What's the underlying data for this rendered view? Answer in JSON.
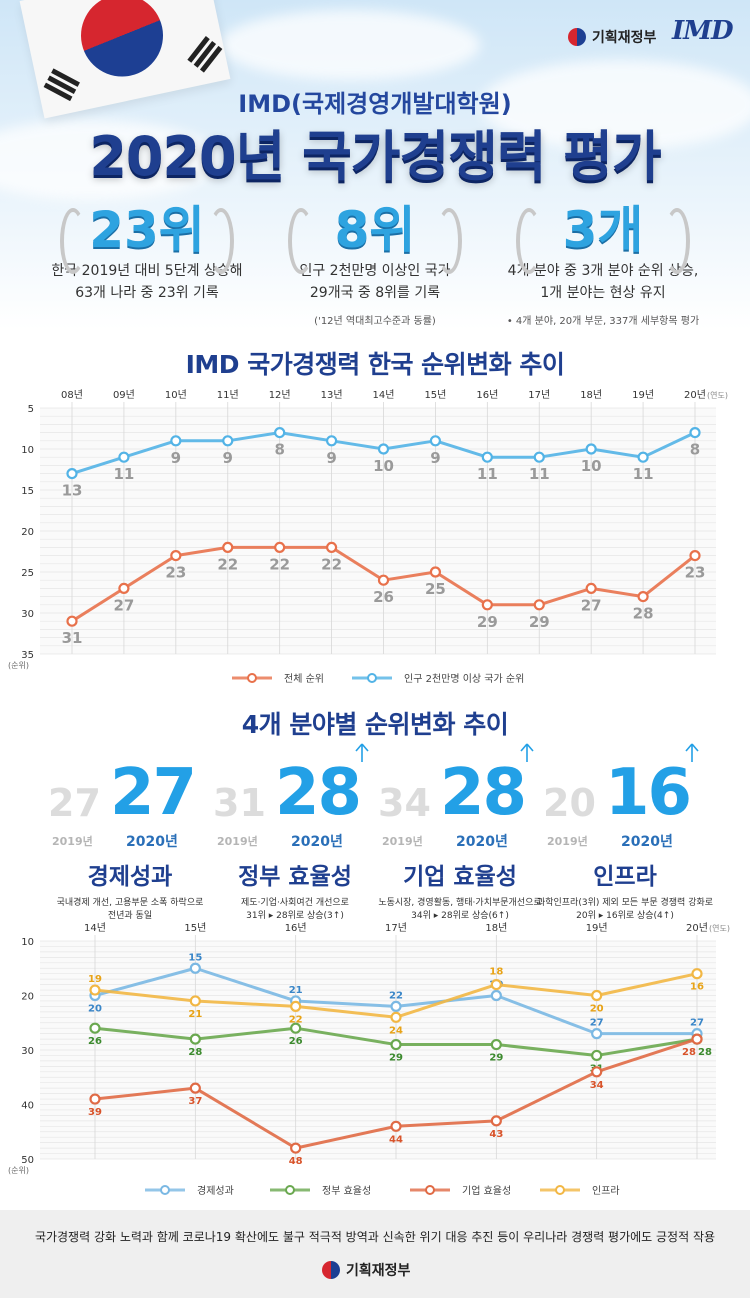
{
  "header": {
    "org": "기획재정부",
    "imd_logo": "IMD",
    "subtitle": "IMD(국제경영개발대학원)",
    "title": "2020년 국가경쟁력 평가"
  },
  "stats": [
    {
      "big": "23위",
      "line1": "한국 2019년 대비 5단계 상승해",
      "line2": "63개 나라 중 23위 기록",
      "note": ""
    },
    {
      "big": "8위",
      "line1": "인구 2천만명 이상인 국가",
      "line2": "29개국 중 8위를 기록",
      "note": "('12년 역대최고수준과 동률)"
    },
    {
      "big": "3개",
      "line1": "4개 분야 중 3개 분야 순위 상승,",
      "line2": "1개 분야는 현상 유지",
      "note": "• 4개 분야, 20개 부문, 337개 세부항목 평가"
    }
  ],
  "chart1_title": "IMD 국가경쟁력 한국 순위변화 추이",
  "chart2_title": "4개 분야별 순위변화 추이",
  "chart_data": [
    {
      "type": "line",
      "title": "IMD 국가경쟁력 한국 순위변화 추이",
      "x": [
        "08년",
        "09년",
        "10년",
        "11년",
        "12년",
        "13년",
        "14년",
        "15년",
        "16년",
        "17년",
        "18년",
        "19년",
        "20년"
      ],
      "x_unit": "(연도)",
      "y_unit": "(순위)",
      "ylim": [
        5,
        35
      ],
      "y_ticks": [
        5,
        10,
        15,
        20,
        25,
        30,
        35
      ],
      "y_inverted": true,
      "grid": true,
      "legend_position": "bottom",
      "series": [
        {
          "name": "전체 순위",
          "color": "#e8714b",
          "values": [
            31,
            27,
            23,
            22,
            22,
            22,
            26,
            25,
            29,
            29,
            27,
            28,
            23
          ]
        },
        {
          "name": "인구 2천만명 이상 국가 순위",
          "color": "#52b3e6",
          "values": [
            13,
            11,
            9,
            9,
            8,
            9,
            10,
            9,
            11,
            11,
            10,
            11,
            8
          ]
        }
      ]
    },
    {
      "type": "line",
      "title": "4개 분야별 순위변화 추이",
      "x": [
        "14년",
        "15년",
        "16년",
        "17년",
        "18년",
        "19년",
        "20년"
      ],
      "x_unit": "(연도)",
      "y_unit": "(순위)",
      "ylim": [
        10,
        50
      ],
      "y_ticks": [
        10,
        20,
        30,
        40,
        50
      ],
      "y_inverted": true,
      "grid": true,
      "legend_position": "bottom",
      "series": [
        {
          "name": "경제성과",
          "color": "#7ab8e3",
          "label_color": "#3a86c8",
          "values": [
            20,
            15,
            21,
            22,
            20,
            27,
            27
          ]
        },
        {
          "name": "정부 효율성",
          "color": "#6aa84f",
          "label_color": "#3c8a2e",
          "values": [
            26,
            28,
            26,
            29,
            29,
            31,
            28
          ]
        },
        {
          "name": "기업 효율성",
          "color": "#e06a45",
          "label_color": "#d8532a",
          "values": [
            39,
            37,
            48,
            44,
            43,
            34,
            28
          ]
        },
        {
          "name": "인프라",
          "color": "#f2b744",
          "label_color": "#e8a317",
          "values": [
            19,
            21,
            22,
            24,
            18,
            20,
            16
          ]
        }
      ]
    }
  ],
  "categories": [
    {
      "prev": "27",
      "cur": "27",
      "y1": "2019년",
      "y2": "2020년",
      "name": "경제성과",
      "desc1": "국내경제 개선, 고용부문 소폭 하락으로",
      "desc2": "전년과 동일",
      "up": false
    },
    {
      "prev": "31",
      "cur": "28",
      "y1": "2019년",
      "y2": "2020년",
      "name": "정부 효율성",
      "desc1": "제도·기업·사회여건 개선으로",
      "desc2": "31위 ▸ 28위로 상승(3↑)",
      "up": true
    },
    {
      "prev": "34",
      "cur": "28",
      "y1": "2019년",
      "y2": "2020년",
      "name": "기업 효율성",
      "desc1": "노동시장, 경영활동, 행태·가치부문개선으로",
      "desc2": "34위 ▸ 28위로 상승(6↑)",
      "up": true
    },
    {
      "prev": "20",
      "cur": "16",
      "y1": "2019년",
      "y2": "2020년",
      "name": "인프라",
      "desc1": "과학인프라(3위) 제외 모든 부문 경쟁력 강화로",
      "desc2": "20위 ▸ 16위로 상승(4↑)",
      "up": true
    }
  ],
  "footer": {
    "text": "국가경쟁력 강화 노력과 함께 코로나19 확산에도 불구 적극적 방역과 신속한 위기 대응 추진 등이 우리나라 경쟁력 평가에도 긍정적 작용",
    "org": "기획재정부"
  }
}
